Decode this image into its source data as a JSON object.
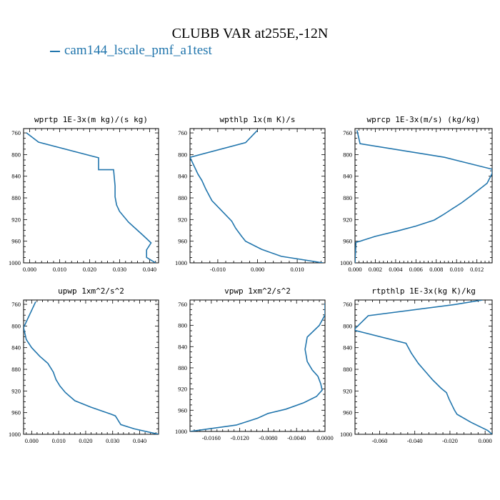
{
  "figure": {
    "title": "CLUBB VAR at255E,-12N",
    "legend_label": "cam144_lscale_pmf_a1test",
    "line_color": "#2276ad"
  },
  "chart_data": [
    {
      "type": "line",
      "title": "wprtp  1E-3x(m kg)/(s kg)",
      "xlim": [
        -0.002,
        0.043
      ],
      "ylim": [
        1000,
        752
      ],
      "x_ticks": [
        0,
        0.01,
        0.02,
        0.03,
        0.04
      ],
      "x_tick_labels": [
        "0.000",
        "0.010",
        "0.020",
        "0.030",
        "0.040"
      ],
      "y_ticks": [
        760,
        800,
        840,
        880,
        920,
        960,
        1000
      ],
      "y_tick_labels": [
        "760",
        "800",
        "840",
        "880",
        "920",
        "960",
        "1000"
      ],
      "series": [
        {
          "x": [
            -0.001,
            0.003,
            0.023,
            0.023,
            0.028,
            0.0285,
            0.0285,
            0.029,
            0.03,
            0.033,
            0.036,
            0.038,
            0.0405,
            0.039,
            0.039,
            0.042
          ],
          "y": [
            760,
            777,
            806,
            828,
            828,
            858,
            878,
            893,
            905,
            925,
            940,
            950,
            963,
            976,
            990,
            1000
          ]
        }
      ]
    },
    {
      "type": "line",
      "title": "wpthlp  1x(m K)/s",
      "xlim": [
        -0.017,
        0.017
      ],
      "ylim": [
        1000,
        752
      ],
      "x_ticks": [
        -0.01,
        0,
        0.01
      ],
      "x_tick_labels": [
        "-0.010",
        "0.000",
        "0.010"
      ],
      "y_ticks": [
        760,
        800,
        840,
        880,
        920,
        960,
        1000
      ],
      "y_tick_labels": [
        "760",
        "800",
        "840",
        "880",
        "920",
        "960",
        "1000"
      ],
      "series": [
        {
          "x": [
            0.0,
            -0.003,
            -0.017,
            -0.015,
            -0.014,
            -0.013,
            -0.0115,
            -0.009,
            -0.0065,
            -0.0055,
            -0.004,
            -0.003,
            0.001,
            0.006,
            0.0165
          ],
          "y": [
            755,
            778,
            805,
            836,
            848,
            864,
            885,
            904,
            923,
            936,
            951,
            960,
            975,
            988,
            1000
          ]
        }
      ]
    },
    {
      "type": "line",
      "title": "wprcp  1E-3x(m/s) (kg/kg)",
      "xlim": [
        0,
        0.0135
      ],
      "ylim": [
        1000,
        752
      ],
      "x_ticks": [
        0,
        0.002,
        0.004,
        0.006,
        0.008,
        0.01,
        0.012
      ],
      "x_tick_labels": [
        "0.000",
        "0.002",
        "0.004",
        "0.006",
        "0.008",
        "0.010",
        "0.012"
      ],
      "y_ticks": [
        760,
        800,
        840,
        880,
        920,
        960,
        1000
      ],
      "y_tick_labels": [
        "760",
        "800",
        "840",
        "880",
        "920",
        "960",
        "1000"
      ],
      "series": [
        {
          "x": [
            0.0002,
            0.0005,
            0.0088,
            0.0135,
            0.0135,
            0.013,
            0.0115,
            0.0105,
            0.0095,
            0.0087,
            0.0078,
            0.006,
            0.0042,
            0.002,
            0.0005,
            0.0001,
            0.0
          ],
          "y": [
            755,
            780,
            805,
            827,
            835,
            853,
            875,
            889,
            901,
            911,
            921,
            932,
            941,
            951,
            960,
            962,
            1000
          ]
        }
      ]
    },
    {
      "type": "line",
      "title": "upwp  1xm^2/s^2",
      "xlim": [
        -0.003,
        0.047
      ],
      "ylim": [
        1000,
        752
      ],
      "x_ticks": [
        0,
        0.01,
        0.02,
        0.03,
        0.04
      ],
      "x_tick_labels": [
        "0.000",
        "0.010",
        "0.020",
        "0.030",
        "0.040"
      ],
      "y_ticks": [
        760,
        800,
        840,
        880,
        920,
        960,
        1000
      ],
      "y_tick_labels": [
        "760",
        "800",
        "840",
        "880",
        "920",
        "960",
        "1000"
      ],
      "series": [
        {
          "x": [
            0.0015,
            -0.003,
            -0.002,
            0.0,
            0.003,
            0.006,
            0.008,
            0.009,
            0.0105,
            0.0125,
            0.016,
            0.022,
            0.0295,
            0.031,
            0.033,
            0.038,
            0.047
          ],
          "y": [
            755,
            803,
            825,
            840,
            856,
            869,
            885,
            899,
            911,
            923,
            938,
            950,
            963,
            966,
            982,
            990,
            1000
          ]
        }
      ]
    },
    {
      "type": "line",
      "title": "vpwp  1xm^2/s^2",
      "xlim": [
        -0.019,
        0.0
      ],
      "ylim": [
        1000,
        752
      ],
      "x_ticks": [
        -0.016,
        -0.012,
        -0.008,
        -0.004,
        0.0
      ],
      "x_tick_labels": [
        "-0.0160",
        "-0.0120",
        "-0.0080",
        "-0.0040",
        "0.0000"
      ],
      "y_ticks": [
        760,
        800,
        840,
        880,
        920,
        960,
        1000
      ],
      "y_tick_labels": [
        "760",
        "800",
        "840",
        "880",
        "920",
        "960",
        "1000"
      ],
      "series": [
        {
          "x": [
            0.0,
            0.0,
            -0.0008,
            -0.0025,
            -0.0028,
            -0.0025,
            -0.0018,
            -0.001,
            -0.0006,
            -0.0004,
            -0.0012,
            -0.003,
            -0.0055,
            -0.008,
            -0.0095,
            -0.0125,
            -0.019
          ],
          "y": [
            758,
            780,
            800,
            822,
            845,
            868,
            884,
            896,
            910,
            922,
            934,
            946,
            958,
            966,
            975,
            988,
            1000
          ]
        }
      ]
    },
    {
      "type": "line",
      "title": "rtpthlp  1E-3x(kg K)/kg",
      "xlim": [
        -0.074,
        0.004
      ],
      "ylim": [
        1000,
        752
      ],
      "x_ticks": [
        -0.06,
        -0.04,
        -0.02,
        0.0
      ],
      "x_tick_labels": [
        "-0.060",
        "-0.040",
        "-0.020",
        "0.000"
      ],
      "y_ticks": [
        760,
        800,
        840,
        880,
        920,
        960,
        1000
      ],
      "y_tick_labels": [
        "760",
        "800",
        "840",
        "880",
        "920",
        "960",
        "1000"
      ],
      "series": [
        {
          "x": [
            -0.0015,
            -0.0165,
            -0.0665,
            -0.074,
            -0.074,
            -0.045,
            -0.042,
            -0.038,
            -0.034,
            -0.03,
            -0.025,
            -0.022,
            -0.0205,
            -0.019,
            -0.0175,
            -0.016,
            -0.008,
            0.0015,
            0.004
          ],
          "y": [
            752,
            760,
            781,
            805,
            808,
            832,
            850,
            869,
            884,
            899,
            915,
            923,
            935,
            945,
            955,
            963,
            978,
            993,
            1000
          ]
        }
      ]
    }
  ]
}
